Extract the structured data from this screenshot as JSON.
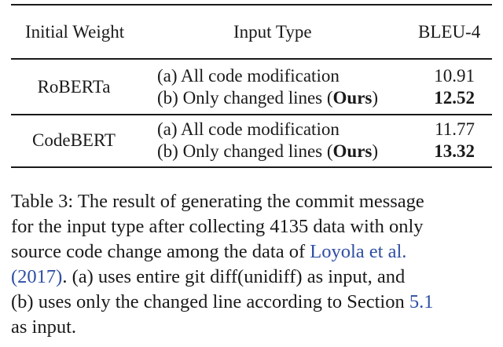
{
  "table": {
    "headers": {
      "weight": "Initial Weight",
      "input_type": "Input Type",
      "score": "BLEU-4"
    },
    "rows": [
      {
        "weight": "RoBERTa",
        "entries": [
          {
            "prefix": "(a) All code modification",
            "ours_open": "",
            "ours": "",
            "ours_close": "",
            "score": "10.91"
          },
          {
            "prefix": "(b) Only changed lines (",
            "ours": "Ours",
            "ours_close": ")",
            "score": "12.52"
          }
        ]
      },
      {
        "weight": "CodeBERT",
        "entries": [
          {
            "prefix": "(a) All code modification",
            "ours": "",
            "ours_close": "",
            "score": "11.77"
          },
          {
            "prefix": "(b) Only changed lines (",
            "ours": "Ours",
            "ours_close": ")",
            "score": "13.32"
          }
        ]
      }
    ]
  },
  "caption": {
    "line1": "Table 3:  The result of generating the commit message",
    "line2": "for the input type after collecting 4135 data with only",
    "line3_a": "source code change among the data of ",
    "line3_link": "Loyola et al.",
    "line4_link": "(2017)",
    "line4_b": ".  (a) uses entire git diff(unidiff) as input, and",
    "line5_a": "(b) uses only the changed line according to Section ",
    "line5_link": "5.1",
    "line6": "as input."
  }
}
